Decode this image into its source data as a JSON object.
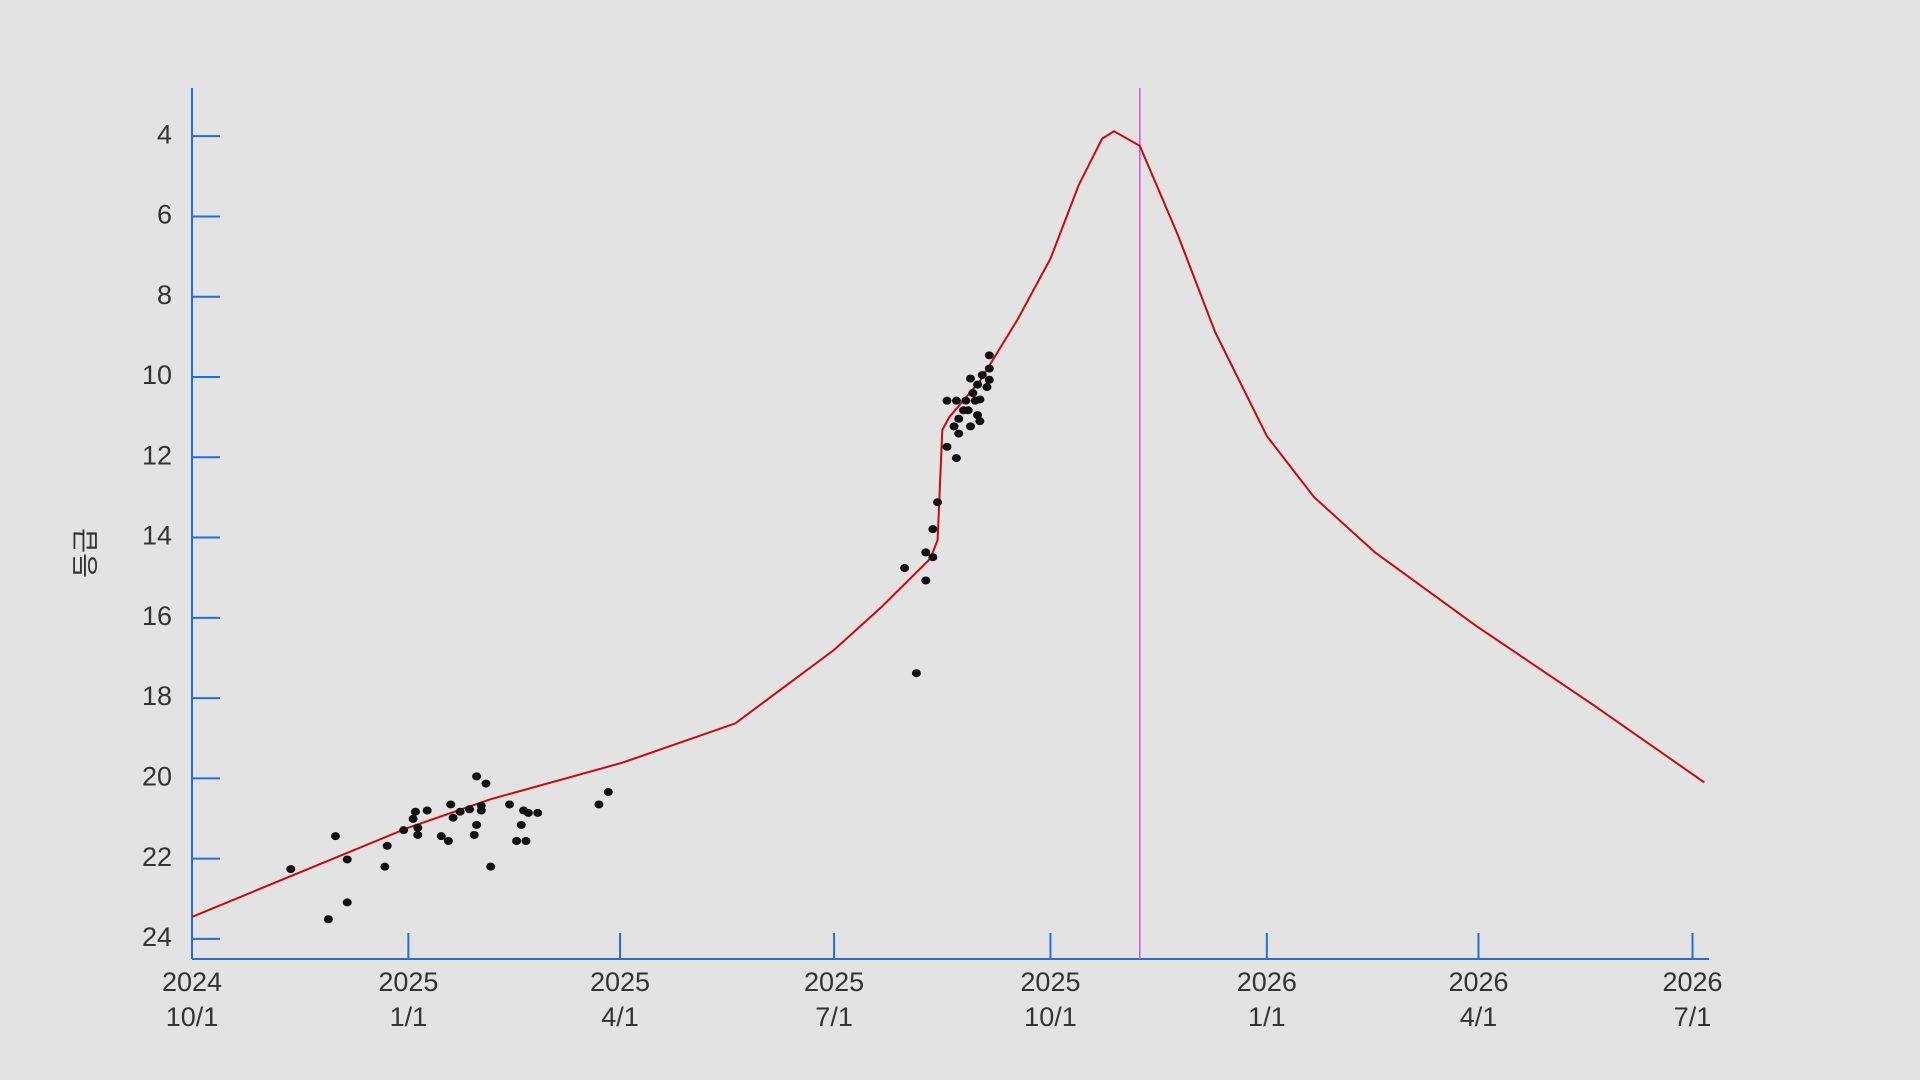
{
  "chart_data": {
    "type": "line",
    "ylabel": "등급",
    "y_inverted": true,
    "xlim": [
      "2024-10-01",
      "2026-07-08"
    ],
    "ylim": [
      2.8,
      24.5
    ],
    "yticks": [
      4,
      6,
      8,
      10,
      12,
      14,
      16,
      18,
      20,
      22,
      24
    ],
    "xticks": [
      {
        "value": "2024-10-01",
        "label": [
          "2024",
          "10/1"
        ]
      },
      {
        "value": "2025-01-01",
        "label": [
          "2025",
          "1/1"
        ]
      },
      {
        "value": "2025-04-01",
        "label": [
          "2025",
          "4/1"
        ]
      },
      {
        "value": "2025-07-01",
        "label": [
          "2025",
          "7/1"
        ]
      },
      {
        "value": "2025-10-01",
        "label": [
          "2025",
          "10/1"
        ]
      },
      {
        "value": "2026-01-01",
        "label": [
          "2026",
          "1/1"
        ]
      },
      {
        "value": "2026-04-01",
        "label": [
          "2026",
          "4/1"
        ]
      },
      {
        "value": "2026-07-01",
        "label": [
          "2026",
          "7/1"
        ]
      }
    ],
    "axis_color": "#1f6fe0",
    "background": "#e3e3e3",
    "vline": {
      "x": "2025-11-08",
      "color": "#d84fe6"
    },
    "curve": {
      "color": "#c80a0a",
      "x": [
        "2024-10-01",
        "2024-11-18",
        "2025-01-01",
        "2025-02-05",
        "2025-04-02",
        "2025-05-20",
        "2025-07-01",
        "2025-07-21",
        "2025-08-11",
        "2025-08-14",
        "2025-08-16",
        "2025-08-19",
        "2025-09-01",
        "2025-09-17",
        "2025-10-01",
        "2025-10-13",
        "2025-10-23",
        "2025-10-28",
        "2025-11-08",
        "2025-11-24",
        "2025-12-10",
        "2026-01-01",
        "2026-01-21",
        "2026-02-16",
        "2026-03-31",
        "2026-05-20",
        "2026-07-06"
      ],
      "values": [
        23.45,
        22.29,
        21.23,
        20.52,
        19.61,
        18.63,
        16.8,
        15.74,
        14.52,
        14.06,
        11.32,
        11.0,
        10.1,
        8.57,
        7.05,
        5.22,
        4.06,
        3.88,
        4.24,
        6.44,
        8.88,
        11.47,
        12.99,
        14.37,
        16.2,
        18.18,
        20.1
      ]
    },
    "observations": {
      "color": "#111111",
      "x": [
        "2024-11-12",
        "2024-11-28",
        "2024-12-01",
        "2024-12-06",
        "2024-12-06",
        "2024-12-22",
        "2024-12-23",
        "2024-12-30",
        "2025-01-03",
        "2025-01-04",
        "2025-01-05",
        "2025-01-05",
        "2025-01-09",
        "2025-01-15",
        "2025-01-18",
        "2025-01-19",
        "2025-01-20",
        "2025-01-23",
        "2025-01-27",
        "2025-01-29",
        "2025-01-30",
        "2025-01-30",
        "2025-02-01",
        "2025-02-01",
        "2025-02-03",
        "2025-02-05",
        "2025-02-13",
        "2025-02-16",
        "2025-02-18",
        "2025-02-19",
        "2025-02-20",
        "2025-02-21",
        "2025-02-25",
        "2025-03-23",
        "2025-03-27",
        "2025-07-31",
        "2025-08-05",
        "2025-08-09",
        "2025-08-09",
        "2025-08-12",
        "2025-08-12",
        "2025-08-14",
        "2025-08-18",
        "2025-08-18",
        "2025-08-21",
        "2025-08-22",
        "2025-08-22",
        "2025-08-23",
        "2025-08-23",
        "2025-08-25",
        "2025-08-26",
        "2025-08-27",
        "2025-08-28",
        "2025-08-28",
        "2025-08-29",
        "2025-08-30",
        "2025-08-31",
        "2025-08-31",
        "2025-09-01",
        "2025-09-01",
        "2025-09-02",
        "2025-09-04",
        "2025-09-05",
        "2025-09-05",
        "2025-09-05"
      ],
      "values": [
        22.26,
        23.51,
        21.44,
        22.02,
        23.09,
        22.2,
        21.68,
        21.29,
        21.01,
        20.83,
        21.23,
        21.41,
        20.8,
        21.44,
        21.56,
        20.65,
        20.98,
        20.83,
        20.77,
        21.41,
        21.16,
        19.95,
        20.68,
        20.8,
        20.13,
        22.2,
        20.65,
        21.56,
        21.16,
        20.8,
        21.56,
        20.86,
        20.86,
        20.65,
        20.34,
        14.76,
        17.38,
        14.37,
        15.07,
        14.49,
        13.79,
        13.12,
        11.74,
        10.59,
        11.23,
        10.59,
        12.02,
        11.04,
        11.41,
        10.83,
        10.59,
        10.83,
        10.04,
        11.23,
        10.4,
        10.59,
        10.19,
        10.95,
        11.1,
        10.56,
        9.95,
        10.25,
        9.79,
        10.07,
        9.46
      ]
    }
  }
}
